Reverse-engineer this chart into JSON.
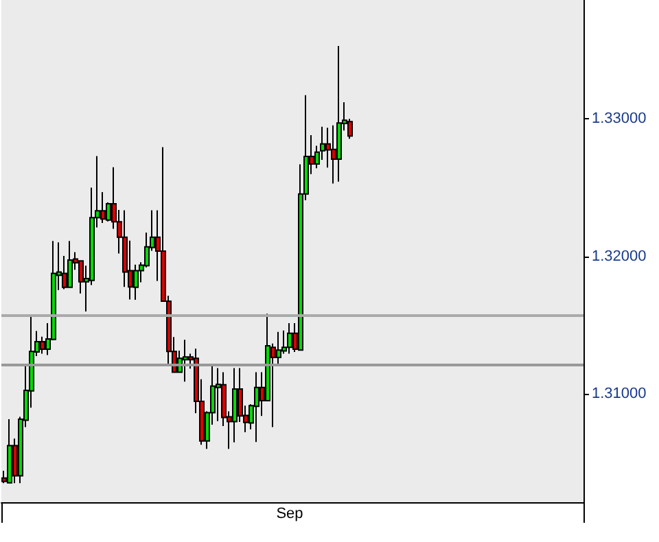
{
  "chart_data": {
    "type": "candlestick",
    "categories": [
      null,
      null,
      null,
      null,
      null,
      null,
      null,
      null,
      null,
      null,
      null,
      null,
      null,
      null,
      null,
      null,
      null,
      null,
      null,
      null,
      null,
      null,
      null,
      null,
      null,
      null,
      null,
      null,
      null,
      null,
      null,
      null,
      null,
      null,
      null,
      null,
      null,
      null,
      null,
      null,
      null,
      null,
      null,
      null,
      null,
      null,
      null,
      null,
      null,
      null,
      null,
      null,
      "Sep",
      null,
      null,
      null,
      null,
      null,
      null,
      null,
      null,
      null,
      null,
      null,
      null,
      null,
      null,
      null,
      null,
      null,
      null,
      null,
      null,
      null,
      null,
      null,
      null,
      null,
      null,
      null,
      null,
      null,
      null,
      null,
      null,
      null,
      null,
      null,
      null,
      null,
      null,
      null,
      null,
      null,
      null,
      null,
      null,
      null,
      null,
      null,
      null,
      null,
      null,
      null,
      null,
      null
    ],
    "ohlc": [
      [
        1.30391,
        1.30444,
        1.30354,
        1.30367
      ],
      [
        1.30357,
        1.30818,
        1.30354,
        1.30626
      ],
      [
        1.30626,
        1.30677,
        1.30354,
        1.30407
      ],
      [
        1.30407,
        1.30836,
        1.30354,
        1.30818
      ],
      [
        1.30811,
        1.31209,
        1.30761,
        1.31027
      ],
      [
        1.31023,
        1.31566,
        1.30902,
        1.3131
      ],
      [
        1.31306,
        1.31458,
        1.31276,
        1.31381
      ],
      [
        1.31381,
        1.31417,
        1.31293,
        1.31326
      ],
      [
        1.31326,
        1.31515,
        1.31283,
        1.31401
      ],
      [
        1.31397,
        1.32111,
        1.31391,
        1.31876
      ],
      [
        1.31862,
        1.32101,
        1.31755,
        1.31886
      ],
      [
        1.31876,
        1.32003,
        1.31761,
        1.31775
      ],
      [
        1.31775,
        1.32111,
        1.31771,
        1.31973
      ],
      [
        1.3198,
        1.3203,
        1.31902,
        1.31953
      ],
      [
        1.31967,
        1.31967,
        1.3173,
        1.31815
      ],
      [
        1.31815,
        1.31932,
        1.31599,
        1.31838
      ],
      [
        1.31825,
        1.32498,
        1.31791,
        1.3228
      ],
      [
        1.3228,
        1.32727,
        1.32209,
        1.3233
      ],
      [
        1.3233,
        1.32465,
        1.32242,
        1.3227
      ],
      [
        1.32263,
        1.32391,
        1.32253,
        1.32381
      ],
      [
        1.32381,
        1.32646,
        1.32199,
        1.3225
      ],
      [
        1.3225,
        1.32336,
        1.3202,
        1.32138
      ],
      [
        1.32138,
        1.32333,
        1.31778,
        1.31886
      ],
      [
        1.31896,
        1.32114,
        1.31687,
        1.31778
      ],
      [
        1.31775,
        1.31939,
        1.31684,
        1.31896
      ],
      [
        1.31896,
        1.31957,
        1.31811,
        1.31936
      ],
      [
        1.31932,
        1.32172,
        1.31919,
        1.32068
      ],
      [
        1.32064,
        1.32333,
        1.3204,
        1.32138
      ],
      [
        1.32138,
        1.32333,
        1.31821,
        1.32037
      ],
      [
        1.32037,
        1.32791,
        1.3167,
        1.31674
      ],
      [
        1.31674,
        1.31714,
        1.31215,
        1.3131
      ],
      [
        1.3131,
        1.31414,
        1.31159,
        1.31159
      ],
      [
        1.31159,
        1.31316,
        1.31155,
        1.3126
      ],
      [
        1.3125,
        1.31394,
        1.31091,
        1.3127
      ],
      [
        1.3127,
        1.31293,
        1.31185,
        1.3125
      ],
      [
        1.3126,
        1.3133,
        1.30862,
        1.30947
      ],
      [
        1.30947,
        1.31108,
        1.30633,
        1.3066
      ],
      [
        1.3066,
        1.30876,
        1.30603,
        1.30866
      ],
      [
        1.30866,
        1.31209,
        1.30778,
        1.31058
      ],
      [
        1.31048,
        1.31189,
        1.30805,
        1.31071
      ],
      [
        1.31068,
        1.31159,
        1.30768,
        1.30831
      ],
      [
        1.30836,
        1.30876,
        1.30603,
        1.30801
      ],
      [
        1.30801,
        1.31189,
        1.3065,
        1.31037
      ],
      [
        1.31037,
        1.31189,
        1.30798,
        1.30842
      ],
      [
        1.30846,
        1.30916,
        1.30724,
        1.30795
      ],
      [
        1.30791,
        1.30926,
        1.30745,
        1.30916
      ],
      [
        1.30912,
        1.31159,
        1.30653,
        1.31048
      ],
      [
        1.31048,
        1.31159,
        1.30842,
        1.30953
      ],
      [
        1.30953,
        1.31583,
        1.30947,
        1.31351
      ],
      [
        1.3134,
        1.31367,
        1.30761,
        1.31266
      ],
      [
        1.31266,
        1.31452,
        1.31212,
        1.3132
      ],
      [
        1.31313,
        1.31462,
        1.31293,
        1.3134
      ],
      [
        1.3134,
        1.31515,
        1.31293,
        1.31441
      ],
      [
        1.31441,
        1.31515,
        1.31306,
        1.31326
      ],
      [
        1.3132,
        1.32667,
        1.3132,
        1.32452
      ],
      [
        1.32452,
        1.33169,
        1.32407,
        1.32724
      ],
      [
        1.32724,
        1.32879,
        1.32596,
        1.3267
      ],
      [
        1.3267,
        1.32801,
        1.32639,
        1.32755
      ],
      [
        1.32765,
        1.32939,
        1.327,
        1.32815
      ],
      [
        1.32815,
        1.32932,
        1.32643,
        1.32771
      ],
      [
        1.32775,
        1.32949,
        1.32528,
        1.32704
      ],
      [
        1.32704,
        1.33525,
        1.32542,
        1.32967
      ],
      [
        1.32963,
        1.33118,
        1.32912,
        1.32987
      ],
      [
        1.32977,
        1.32997,
        1.32852,
        1.32872
      ],
      null,
      null,
      null,
      null,
      null,
      null,
      null,
      null,
      null,
      null,
      null,
      null,
      null,
      null,
      null,
      null,
      null,
      null,
      null,
      null,
      null,
      null,
      null,
      null,
      null,
      null,
      null,
      null,
      null,
      null,
      null,
      null,
      null,
      null,
      null,
      null,
      null,
      null,
      null,
      null,
      null,
      null
    ],
    "colors": [
      "#dd0000",
      "#00dd00",
      "#dd0000",
      "#00dd00",
      "#00dd00",
      "#00dd00",
      "#00dd00",
      "#dd0000",
      "#00dd00",
      "#00dd00",
      "#00dd00",
      "#dd0000",
      "#00dd00",
      "#dd0000",
      "#dd0000",
      "#00dd00",
      "#00dd00",
      "#00dd00",
      "#dd0000",
      "#00dd00",
      "#dd0000",
      "#dd0000",
      "#dd0000",
      "#dd0000",
      "#00dd00",
      "#00dd00",
      "#00dd00",
      "#00dd00",
      "#dd0000",
      "#dd0000",
      "#dd0000",
      "#dd0000",
      "#00dd00",
      "#00dd00",
      "#dd0000",
      "#dd0000",
      "#dd0000",
      "#00dd00",
      "#00dd00",
      "#00dd00",
      "#dd0000",
      "#dd0000",
      "#00dd00",
      "#dd0000",
      "#dd0000",
      "#00dd00",
      "#00dd00",
      "#dd0000",
      "#00dd00",
      "#dd0000",
      "#00dd00",
      "#00dd00",
      "#00dd00",
      "#dd0000",
      "#00dd00",
      "#00dd00",
      "#dd0000",
      "#00dd00",
      "#00dd00",
      "#dd0000",
      "#dd0000",
      "#00dd00",
      "#00dd00",
      "#dd0000",
      null,
      null,
      null,
      null,
      null,
      null,
      null,
      null,
      null,
      null,
      null,
      null,
      null,
      null,
      null,
      null,
      null,
      null,
      null,
      null,
      null,
      null,
      null,
      null,
      null,
      null,
      null,
      null,
      null,
      null,
      null,
      null,
      null,
      null,
      null,
      null,
      null,
      null,
      null,
      null,
      null,
      null
    ],
    "ylim": [
      1.30216,
      1.33859
    ],
    "yticks": [
      {
        "value": 1.31,
        "label": "1.31000"
      },
      {
        "value": 1.32,
        "label": "1.32000"
      },
      {
        "value": 1.33,
        "label": "1.33000"
      }
    ],
    "ref_lines": [
      {
        "axis": "y",
        "value": 1.31576,
        "color": "#aaaaaa"
      },
      {
        "axis": "y",
        "value": 1.31212,
        "color": "#999999"
      }
    ]
  }
}
